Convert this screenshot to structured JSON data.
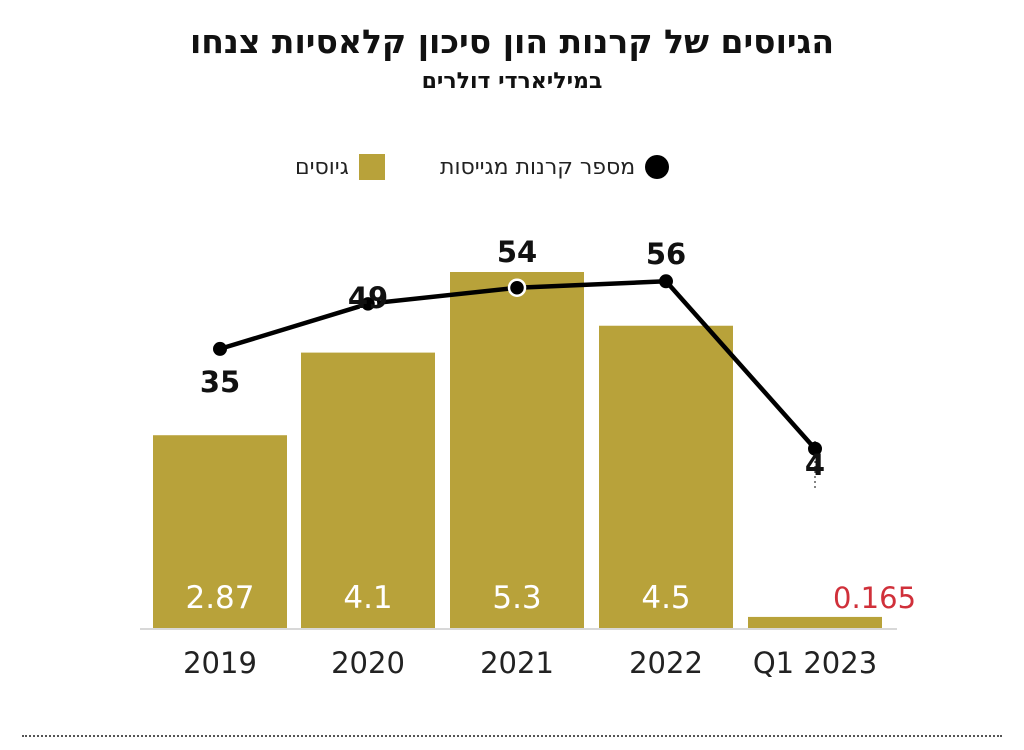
{
  "title": "הגיוסים של קרנות הון סיכון קלאסיות צנחו",
  "subtitle": "במיליארדי דולרים",
  "legend": {
    "bars_label": "גיוסים",
    "line_label": "מספר קרנות מגייסות"
  },
  "colors": {
    "bar": "#b8a23a",
    "line": "#000000",
    "highlight_label": "#d0303a",
    "bar_label": "#ffffff",
    "axis": "#d8d8d8"
  },
  "chart_data": {
    "type": "bar",
    "categories": [
      "2019",
      "2020",
      "2021",
      "2022",
      "Q1 2023"
    ],
    "series": [
      {
        "name": "גיוסים",
        "type": "bar",
        "values": [
          2.87,
          4.1,
          5.3,
          4.5,
          0.165
        ],
        "labels": [
          "2.87",
          "4.1",
          "5.3",
          "4.5",
          "0.165"
        ]
      },
      {
        "name": "מספר קרנות מגייסות",
        "type": "line",
        "values": [
          35,
          49,
          54,
          56,
          4
        ],
        "labels": [
          "35",
          "49",
          "54",
          "56",
          "4"
        ]
      }
    ],
    "title": "הגיוסים של קרנות הון סיכון קלאסיות צנחו",
    "subtitle": "במיליארדי דולרים",
    "legend_position": "top-center"
  }
}
